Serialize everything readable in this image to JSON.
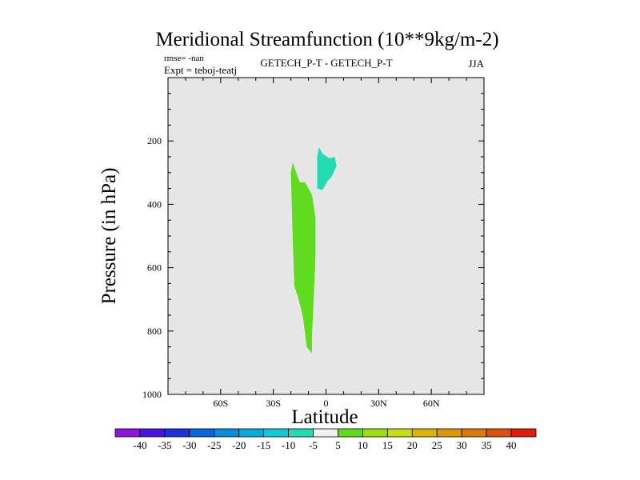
{
  "chart_data": {
    "type": "filled-contour",
    "title": "Meridional Streamfunction (10**9kg/m-2)",
    "left_annotation": [
      "rmse= -nan",
      "Expt = teboj-teatj"
    ],
    "center_annotation": "GETECH_P-T - GETECH_P-T",
    "right_annotation": "JJA",
    "xlabel": "Latitude",
    "ylabel": "Pressure (in hPa)",
    "xlim": [
      -90,
      90
    ],
    "ylim": [
      1000,
      0
    ],
    "x_ticks": [
      {
        "value": -60,
        "label": "60S"
      },
      {
        "value": -30,
        "label": "30S"
      },
      {
        "value": 0,
        "label": "0"
      },
      {
        "value": 30,
        "label": "30N"
      },
      {
        "value": 60,
        "label": "60N"
      }
    ],
    "y_ticks": [
      {
        "value": 200,
        "label": "200"
      },
      {
        "value": 400,
        "label": "400"
      },
      {
        "value": 600,
        "label": "600"
      },
      {
        "value": 800,
        "label": "800"
      },
      {
        "value": 1000,
        "label": "1000"
      }
    ],
    "background_color": "#e6e6e6",
    "regions": [
      {
        "name": "positive-cell",
        "value_range": [
          5,
          10
        ],
        "color": "#5fdc1e",
        "polygon": [
          [
            -19,
            268
          ],
          [
            -15,
            330
          ],
          [
            -12,
            330
          ],
          [
            -8,
            370
          ],
          [
            -6,
            440
          ],
          [
            -6,
            560
          ],
          [
            -7,
            700
          ],
          [
            -8,
            820
          ],
          [
            -8,
            870
          ],
          [
            -11,
            850
          ],
          [
            -13,
            760
          ],
          [
            -16,
            690
          ],
          [
            -18,
            660
          ],
          [
            -19,
            500
          ],
          [
            -20,
            300
          ]
        ]
      },
      {
        "name": "negative-cell",
        "value_range": [
          -10,
          -5
        ],
        "color": "#22dcb4",
        "polygon": [
          [
            -4,
            220
          ],
          [
            -2,
            240
          ],
          [
            2,
            255
          ],
          [
            5,
            250
          ],
          [
            6,
            280
          ],
          [
            3,
            315
          ],
          [
            1,
            325
          ],
          [
            -2,
            355
          ],
          [
            -5,
            350
          ],
          [
            -5,
            300
          ],
          [
            -5,
            250
          ]
        ]
      }
    ],
    "colorbar": {
      "levels": [
        "-40",
        "-35",
        "-30",
        "-25",
        "-20",
        "-15",
        "-10",
        "-5",
        "5",
        "10",
        "15",
        "20",
        "25",
        "30",
        "35",
        "40"
      ],
      "colors": [
        "#8c14dc",
        "#4614dc",
        "#1e32dc",
        "#0a64dc",
        "#0a8cdc",
        "#0aaadc",
        "#14c8dc",
        "#22dcb4",
        "#f0f0f0",
        "#5fdc1e",
        "#9ade14",
        "#c8dc14",
        "#dcb40a",
        "#dc960a",
        "#dc780a",
        "#dc500a",
        "#dc1e0a"
      ]
    }
  }
}
